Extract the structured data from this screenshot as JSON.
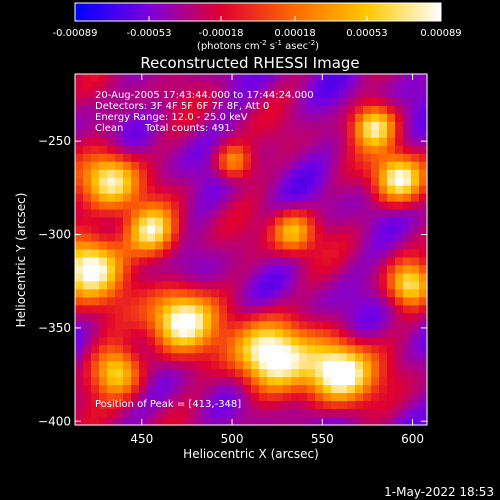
{
  "colorbar": {
    "tick_labels": [
      "-0.00089",
      "-0.00053",
      "-0.00018",
      "0.00018",
      "0.00053",
      "0.00089"
    ],
    "tick_values": [
      -0.00089,
      -0.00053,
      -0.00018,
      0.00018,
      0.00053,
      0.00089
    ],
    "range": [
      -0.00089,
      0.00089
    ],
    "colormap": "rainbow-blue-to-red-to-yellow-white",
    "colormap_stops": [
      "#0000ff",
      "#7a00e0",
      "#e00030",
      "#ff6a00",
      "#ffc800",
      "#ffffff"
    ],
    "unit_main": "(photons cm",
    "unit_sup1": "-2",
    "unit_mid": " s",
    "unit_sup2": "-1",
    "unit_mid2": " asec",
    "unit_sup3": "-2",
    "unit_end": ")"
  },
  "chart_data": {
    "type": "heatmap",
    "title": "Reconstructed RHESSI Image",
    "xlabel": "Heliocentric X (arcsec)",
    "ylabel": "Heliocentric Y (arcsec)",
    "xlim": [
      413,
      608
    ],
    "ylim": [
      -402,
      -214
    ],
    "x_ticks": [
      450,
      500,
      550,
      600
    ],
    "x_tick_labels": [
      "450",
      "500",
      "550",
      "600"
    ],
    "y_ticks": [
      -250,
      -300,
      -350,
      -400
    ],
    "y_tick_labels": [
      "−250",
      "−300",
      "−350",
      "−400"
    ],
    "grid": false,
    "annotations": {
      "time": "20-Aug-2005 17:43:44.000 to 17:44:24.000",
      "detectors": "Detectors: 3F 4F 5F 6F 7F 8F, Att 0",
      "energy": "Energy Range: 12.0 - 25.0 keV",
      "clean": "Clean",
      "total_counts": "Total counts: 491.",
      "peak": "Position of Peak = [413,-348]"
    },
    "peak": [
      413,
      -348
    ]
  },
  "footer": {
    "date": "1-May-2022 18:53"
  }
}
